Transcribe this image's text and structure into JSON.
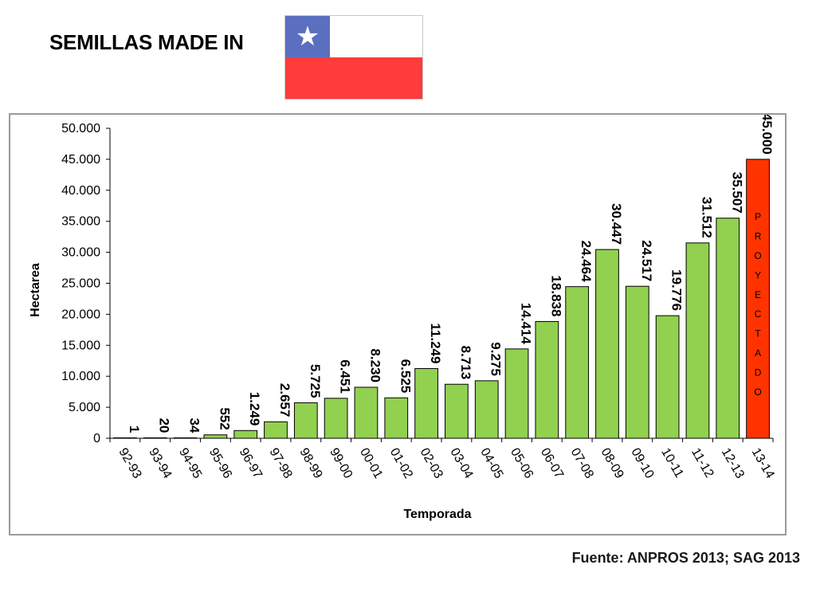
{
  "slide": {
    "title": "SEMILLAS MADE IN",
    "source": "Fuente: ANPROS 2013; SAG 2013"
  },
  "flag": {
    "icon": "chile-flag-icon",
    "star_glyph": "★",
    "colors": {
      "blue": "#5A6FC0",
      "white": "#FFFFFF",
      "red": "#FF3B3B"
    }
  },
  "chart_data": {
    "type": "bar",
    "title": "",
    "xlabel": "Temporada",
    "ylabel": "Hectarea",
    "ylim": [
      0,
      50000
    ],
    "yticks": [
      "0",
      "5.000",
      "10.000",
      "15.000",
      "20.000",
      "25.000",
      "30.000",
      "35.000",
      "40.000",
      "45.000",
      "50.000"
    ],
    "grid": false,
    "categories": [
      "92-93",
      "93-94",
      "94-95",
      "95-96",
      "96-97",
      "97-98",
      "98-99",
      "99-00",
      "00-01",
      "01-02",
      "02-03",
      "03-04",
      "04-05",
      "05-06",
      "06-07",
      "07-08",
      "08-09",
      "09-10",
      "10-11",
      "11-12",
      "12-13",
      "13-14"
    ],
    "values": [
      1,
      20,
      34,
      552,
      1249,
      2657,
      5725,
      6451,
      8230,
      6525,
      11249,
      8713,
      9275,
      14414,
      18838,
      24464,
      30447,
      24517,
      19776,
      31512,
      35507,
      45000
    ],
    "data_labels": [
      "1",
      "20",
      "34",
      "552",
      "1.249",
      "2.657",
      "5.725",
      "6.451",
      "8.230",
      "6.525",
      "11.249",
      "8.713",
      "9.275",
      "14.414",
      "18.838",
      "24.464",
      "30.447",
      "24.517",
      "19.776",
      "31.512",
      "35.507",
      "45.000"
    ],
    "colors": {
      "bar": "#92D050",
      "projected": "#FF3300",
      "outline": "#000000"
    },
    "projected_index": 21,
    "projected_text": "PROYECTADO"
  }
}
